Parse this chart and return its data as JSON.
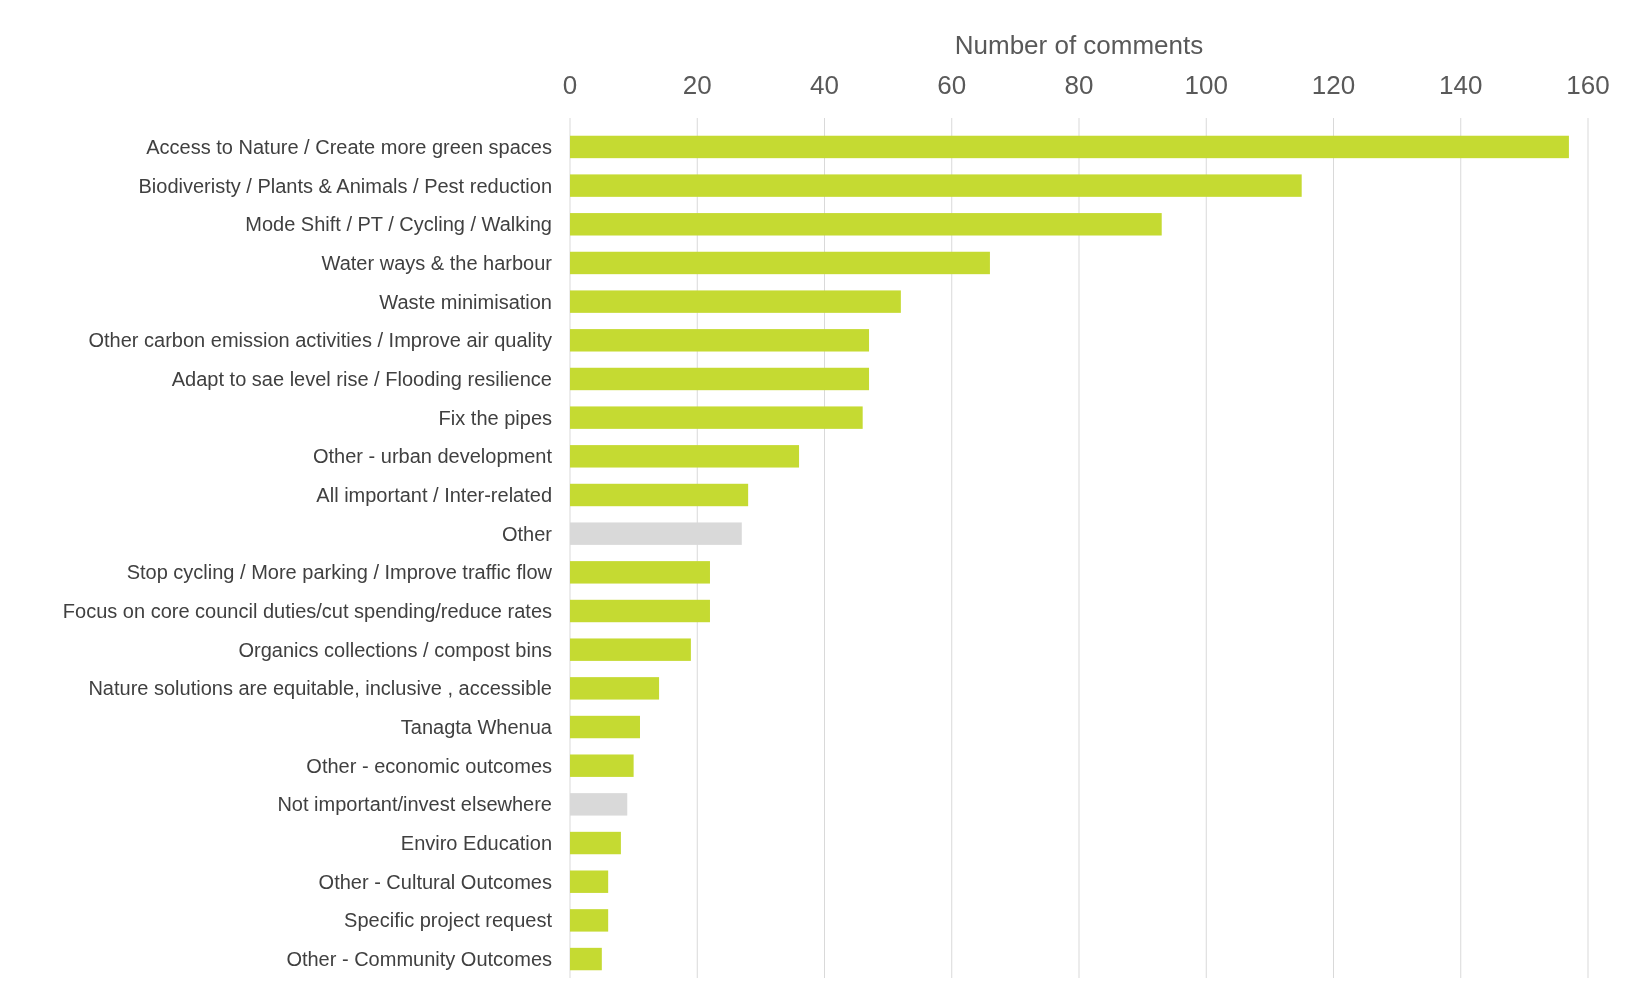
{
  "chart_data": {
    "type": "bar",
    "orientation": "horizontal",
    "xlabel": "Number of comments",
    "categories": [
      "Access to Nature / Create more green spaces",
      "Biodiveristy / Plants & Animals / Pest reduction",
      "Mode Shift / PT / Cycling / Walking",
      "Water ways & the harbour",
      "Waste minimisation",
      "Other carbon emission activities / Improve air quality",
      "Adapt to sae level rise / Flooding resilience",
      "Fix the pipes",
      "Other - urban development",
      "All important / Inter-related",
      "Other",
      "Stop cycling / More parking / Improve traffic flow",
      "Focus on core council duties/cut spending/reduce rates",
      "Organics collections / compost bins",
      "Nature solutions are equitable, inclusive , accessible",
      "Tanagta Whenua",
      "Other - economic outcomes",
      "Not important/invest elsewhere",
      "Enviro Education",
      "Other - Cultural Outcomes",
      "Specific project request",
      "Other - Community Outcomes"
    ],
    "values": [
      157,
      115,
      93,
      66,
      52,
      47,
      47,
      46,
      36,
      28,
      27,
      22,
      22,
      19,
      14,
      11,
      10,
      9,
      8,
      6,
      6,
      5
    ],
    "colors": [
      "#c5da32",
      "#c5da32",
      "#c5da32",
      "#c5da32",
      "#c5da32",
      "#c5da32",
      "#c5da32",
      "#c5da32",
      "#c5da32",
      "#c5da32",
      "#d9d9d9",
      "#c5da32",
      "#c5da32",
      "#c5da32",
      "#c5da32",
      "#c5da32",
      "#c5da32",
      "#d9d9d9",
      "#c5da32",
      "#c5da32",
      "#c5da32",
      "#c5da32"
    ],
    "xlim": [
      0,
      160
    ],
    "xticks": [
      0,
      20,
      40,
      60,
      80,
      100,
      120,
      140,
      160
    ],
    "grid": "x"
  }
}
